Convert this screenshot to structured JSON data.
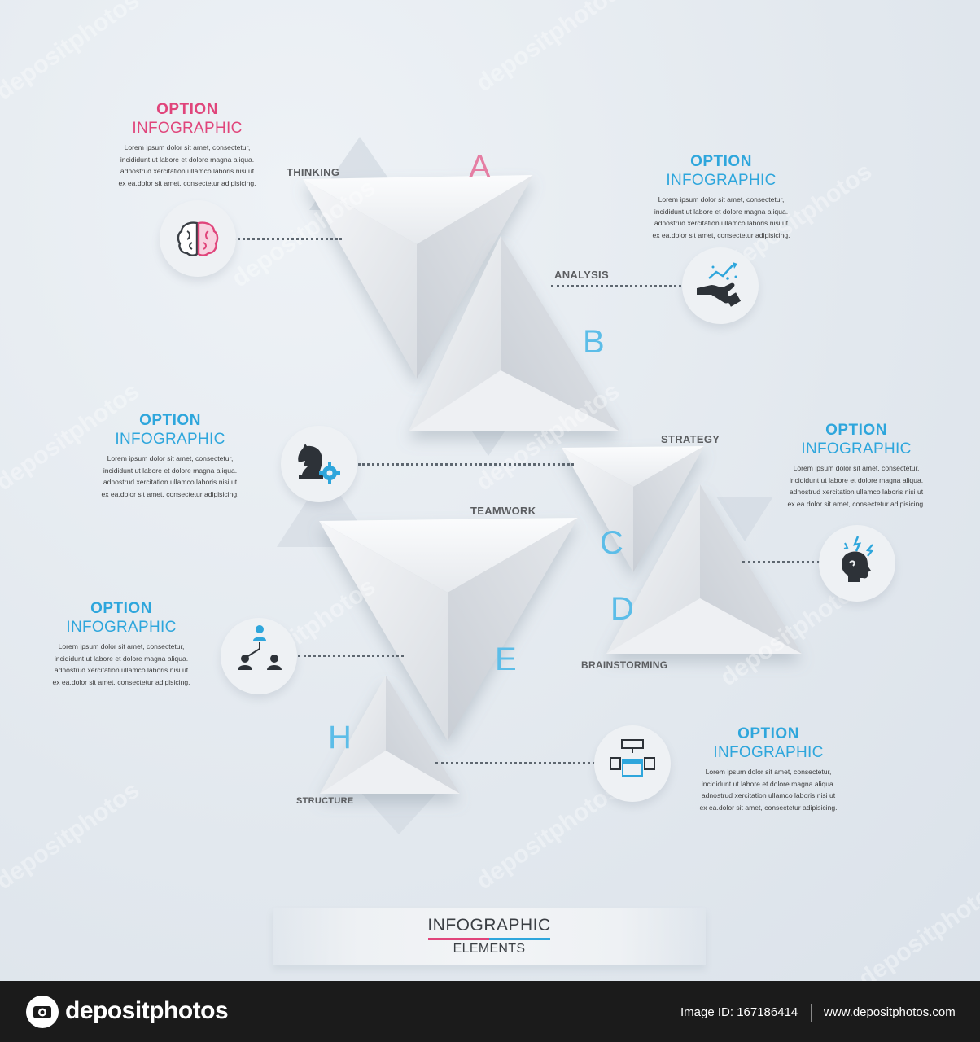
{
  "options": [
    {
      "title": "OPTION",
      "subtitle": "INFOGRAPHIC",
      "text": [
        "Lorem ipsum dolor sit amet, consectetur,",
        "incididunt ut labore et dolore magna aliqua.",
        "adnostrud xercitation ullamco laboris nisi ut",
        "ex ea.dolor sit amet, consectetur adipisicing."
      ],
      "color": "#e0457b"
    },
    {
      "title": "OPTION",
      "subtitle": "INFOGRAPHIC",
      "text": [
        "Lorem ipsum dolor sit amet, consectetur,",
        "incididunt ut labore et dolore magna aliqua.",
        "adnostrud xercitation ullamco laboris nisi ut",
        "ex ea.dolor sit amet, consectetur adipisicing."
      ],
      "color": "#2ea6dc"
    },
    {
      "title": "OPTION",
      "subtitle": "INFOGRAPHIC",
      "text": [
        "Lorem ipsum dolor sit amet, consectetur,",
        "incididunt ut labore et dolore magna aliqua.",
        "adnostrud xercitation ullamco laboris nisi ut",
        "ex ea.dolor sit amet, consectetur adipisicing."
      ],
      "color": "#2ea6dc"
    },
    {
      "title": "OPTION",
      "subtitle": "INFOGRAPHIC",
      "text": [
        "Lorem ipsum dolor sit amet, consectetur,",
        "incididunt ut labore et dolore magna aliqua.",
        "adnostrud xercitation ullamco laboris nisi ut",
        "ex ea.dolor sit amet, consectetur adipisicing."
      ],
      "color": "#2ea6dc"
    },
    {
      "title": "OPTION",
      "subtitle": "INFOGRAPHIC",
      "text": [
        "Lorem ipsum dolor sit amet, consectetur,",
        "incididunt ut labore et dolore magna aliqua.",
        "adnostrud xercitation ullamco laboris nisi ut",
        "ex ea.dolor sit amet, consectetur adipisicing."
      ],
      "color": "#2ea6dc"
    },
    {
      "title": "OPTION",
      "subtitle": "INFOGRAPHIC",
      "text": [
        "Lorem ipsum dolor sit amet, consectetur,",
        "incididunt ut labore et dolore magna aliqua.",
        "adnostrud xercitation ullamco laboris nisi ut",
        "ex ea.dolor sit amet, consectetur adipisicing."
      ],
      "color": "#2ea6dc"
    }
  ],
  "stages": {
    "thinking": "THINKING",
    "analysis": "ANALYSIS",
    "strategy": "STRATEGY",
    "teamwork": "TEAMWORK",
    "brainstorming": "BRAINSTORMING",
    "structure": "STRUCTURE"
  },
  "letters": {
    "a": "A",
    "b": "B",
    "c": "C",
    "d": "D",
    "e": "E",
    "h": "H"
  },
  "icons": [
    "brain-icon",
    "growth-chart-hand-icon",
    "chess-knight-gear-icon",
    "stressed-head-icon",
    "team-hierarchy-icon",
    "structure-diagram-icon"
  ],
  "banner": {
    "title": "INFOGRAPHIC",
    "subtitle": "ELEMENTS"
  },
  "footer": {
    "brand": "depositphotos",
    "image_id": "Image ID: 167186414",
    "url": "www.depositphotos.com"
  },
  "watermark": "depositphotos",
  "colors": {
    "pink": "#e0457b",
    "blue": "#2ea6dc",
    "dark": "#333a40",
    "footer_bg": "#1b1b1b"
  }
}
